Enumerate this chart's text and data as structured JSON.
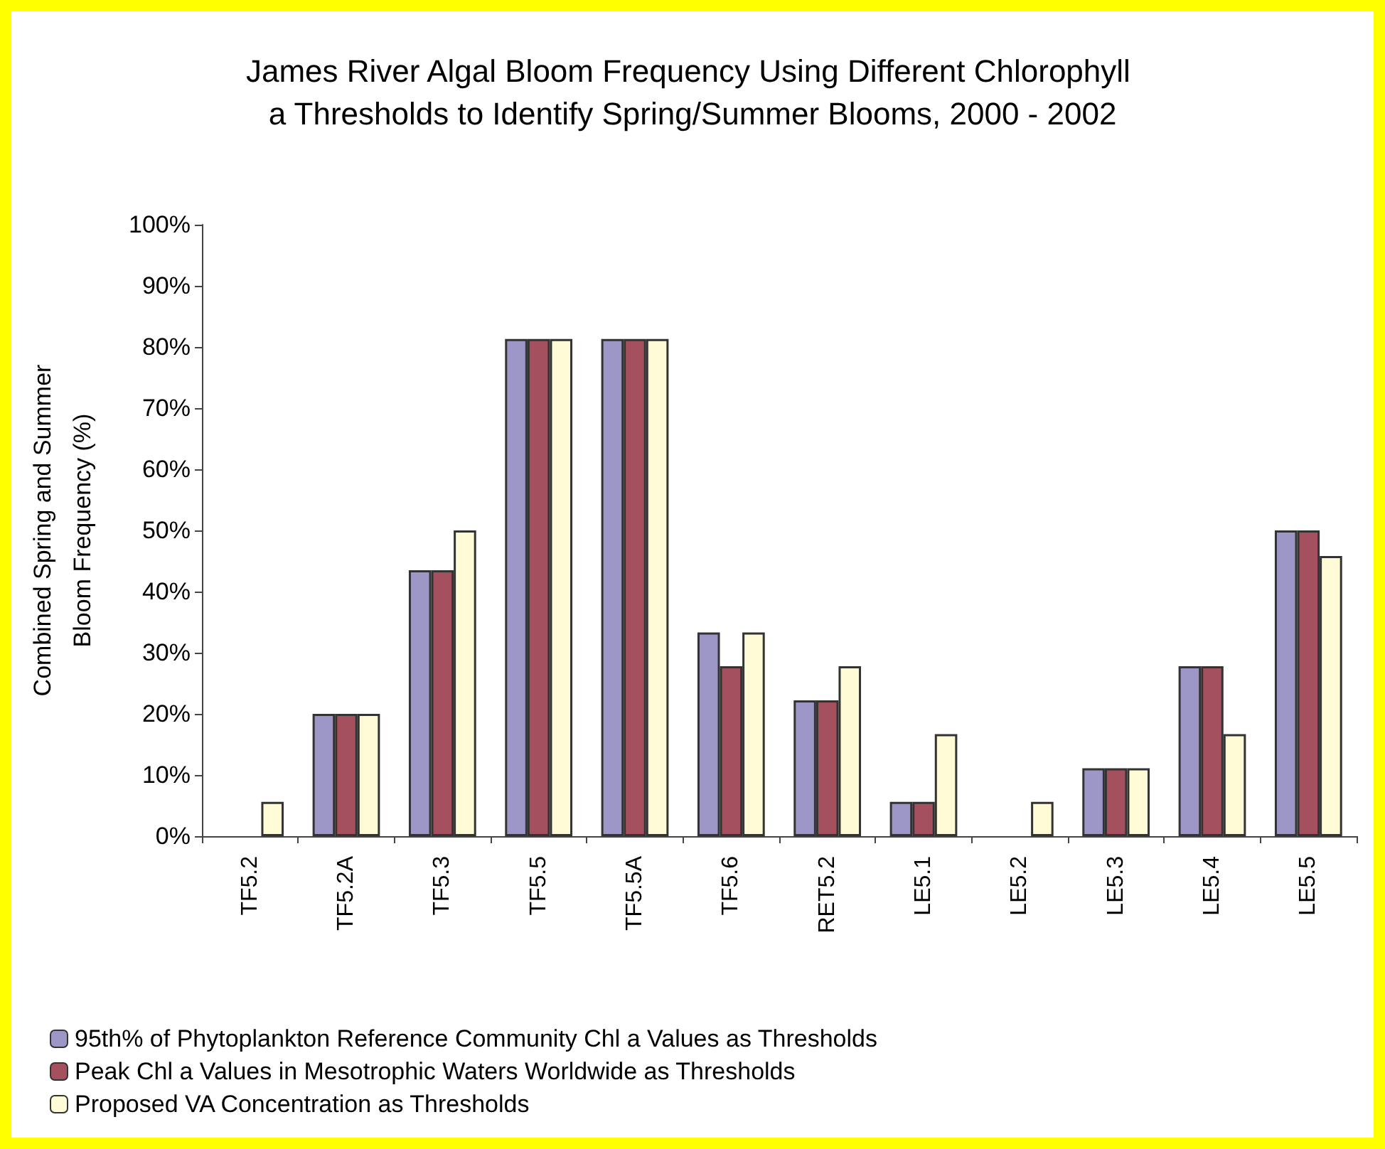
{
  "chart_data": {
    "type": "bar",
    "title": "James River Algal Bloom Frequency Using Different Chlorophyll a Thresholds to Identify Spring/Summer Blooms, 2000 - 2002",
    "ylabel": "Combined Spring and Summer Bloom Frequency (%)",
    "categories": [
      "TF5.2",
      "TF5.2A",
      "TF5.3",
      "TF5.5",
      "TF5.5A",
      "TF5.6",
      "RET5.2",
      "LE5.1",
      "LE5.2",
      "LE5.3",
      "LE5.4",
      "LE5.5"
    ],
    "series": [
      {
        "name": "95th% of Phytoplankton Reference Community Chl a Values as Thresholds",
        "color": "#9d97c8",
        "values": [
          0,
          20,
          43.5,
          81.3,
          81.3,
          33.3,
          22.2,
          5.6,
          0,
          11.1,
          27.8,
          50
        ]
      },
      {
        "name": "Peak Chl a Values in Mesotrophic Waters Worldwide as Thresholds",
        "color": "#a5505e",
        "values": [
          0,
          20,
          43.5,
          81.3,
          81.3,
          27.8,
          22.2,
          5.6,
          0,
          11.1,
          27.8,
          50
        ]
      },
      {
        "name": "Proposed VA Concentration as Thresholds",
        "color": "#fffbd6",
        "values": [
          5.6,
          20,
          50,
          81.3,
          81.3,
          33.3,
          27.8,
          16.7,
          5.6,
          11.1,
          16.7,
          45.8
        ]
      }
    ],
    "ylim": [
      0,
      100
    ],
    "yticks": [
      {
        "value": 0,
        "label": "0%"
      },
      {
        "value": 10,
        "label": "10%"
      },
      {
        "value": 20,
        "label": "20%"
      },
      {
        "value": 30,
        "label": "30%"
      },
      {
        "value": 40,
        "label": "40%"
      },
      {
        "value": 50,
        "label": "50%"
      },
      {
        "value": 60,
        "label": "60%"
      },
      {
        "value": 70,
        "label": "70%"
      },
      {
        "value": 80,
        "label": "80%"
      },
      {
        "value": 90,
        "label": "90%"
      },
      {
        "value": 100,
        "label": "100%"
      }
    ],
    "grid": false,
    "legend": "bottom"
  }
}
